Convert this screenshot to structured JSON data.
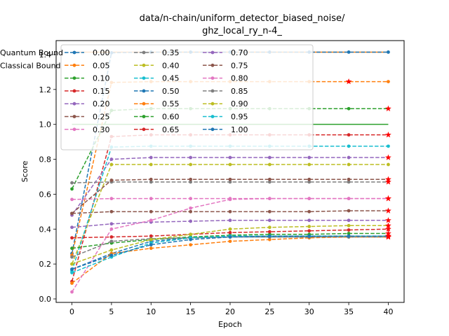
{
  "chart_data": {
    "type": "line",
    "title_line1": "data/n-chain/uniform_detector_biased_noise/",
    "title_line2": "ghz_local_ry_n-4_",
    "xlabel": "Epoch",
    "ylabel": "Score",
    "xlim": [
      -2,
      42
    ],
    "ylim": [
      -0.02,
      1.48
    ],
    "xticks": [
      0,
      5,
      10,
      15,
      20,
      25,
      30,
      35,
      40
    ],
    "yticks": [
      0.0,
      0.2,
      0.4,
      0.6,
      0.8,
      1.0,
      1.2,
      1.4
    ],
    "epochs": [
      0,
      5,
      10,
      15,
      20,
      25,
      30,
      35,
      40
    ],
    "quantum_bound": 1.414,
    "classical_bound": 1.0,
    "legend_placement": "upper-left",
    "series": [
      {
        "name": "0.00",
        "color": "#1f77b4",
        "values": [
          0.26,
          1.41,
          1.414,
          1.414,
          1.414,
          1.414,
          1.414,
          1.414,
          1.414
        ],
        "star": [
          false,
          false,
          false,
          false,
          false,
          false,
          false,
          false,
          false
        ]
      },
      {
        "name": "0.05",
        "color": "#ff7f0e",
        "values": [
          0.25,
          1.24,
          1.245,
          1.245,
          1.245,
          1.245,
          1.245,
          1.245,
          1.245
        ],
        "star": [
          false,
          false,
          false,
          false,
          false,
          false,
          false,
          true,
          false
        ]
      },
      {
        "name": "0.10",
        "color": "#2ca02c",
        "values": [
          0.63,
          1.08,
          1.09,
          1.09,
          1.09,
          1.09,
          1.09,
          1.09,
          1.09
        ],
        "star": [
          false,
          false,
          false,
          false,
          false,
          false,
          false,
          false,
          true
        ]
      },
      {
        "name": "0.15",
        "color": "#d62728",
        "values": [
          0.1,
          0.93,
          0.94,
          0.94,
          0.94,
          0.94,
          0.94,
          0.94,
          0.94
        ],
        "star": [
          false,
          false,
          false,
          false,
          false,
          false,
          false,
          false,
          true
        ]
      },
      {
        "name": "0.20",
        "color": "#9467bd",
        "values": [
          0.48,
          0.8,
          0.81,
          0.81,
          0.81,
          0.81,
          0.81,
          0.81,
          0.81
        ],
        "star": [
          false,
          false,
          false,
          false,
          false,
          false,
          false,
          false,
          true
        ]
      },
      {
        "name": "0.25",
        "color": "#8c564b",
        "values": [
          0.49,
          0.5,
          0.5,
          0.5,
          0.5,
          0.5,
          0.5,
          0.505,
          0.505
        ],
        "star": [
          false,
          false,
          false,
          false,
          false,
          false,
          false,
          false,
          true
        ]
      },
      {
        "name": "0.30",
        "color": "#e377c2",
        "values": [
          0.57,
          0.575,
          0.575,
          0.575,
          0.575,
          0.575,
          0.575,
          0.575,
          0.575
        ],
        "star": [
          false,
          false,
          false,
          false,
          false,
          false,
          false,
          false,
          true
        ]
      },
      {
        "name": "0.35",
        "color": "#7f7f7f",
        "values": [
          0.665,
          0.67,
          0.67,
          0.67,
          0.67,
          0.67,
          0.67,
          0.67,
          0.67
        ],
        "star": [
          false,
          false,
          false,
          false,
          false,
          false,
          false,
          false,
          true
        ]
      },
      {
        "name": "0.40",
        "color": "#bcbd22",
        "values": [
          0.2,
          0.77,
          0.77,
          0.77,
          0.77,
          0.77,
          0.77,
          0.77,
          0.77
        ],
        "star": [
          false,
          false,
          false,
          false,
          false,
          false,
          false,
          false,
          false
        ]
      },
      {
        "name": "0.45",
        "color": "#17becf",
        "values": [
          0.16,
          0.87,
          0.875,
          0.875,
          0.875,
          0.875,
          0.875,
          0.875,
          0.875
        ],
        "star": [
          false,
          false,
          false,
          false,
          false,
          false,
          false,
          false,
          false
        ]
      },
      {
        "name": "0.50",
        "color": "#1f77b4",
        "values": [
          0.17,
          0.26,
          0.33,
          0.35,
          0.355,
          0.355,
          0.355,
          0.355,
          0.355
        ],
        "star": [
          false,
          false,
          false,
          false,
          false,
          false,
          false,
          false,
          true
        ]
      },
      {
        "name": "0.55",
        "color": "#ff7f0e",
        "values": [
          0.09,
          0.26,
          0.29,
          0.31,
          0.33,
          0.34,
          0.35,
          0.355,
          0.355
        ],
        "star": [
          false,
          false,
          false,
          false,
          false,
          false,
          false,
          false,
          true
        ]
      },
      {
        "name": "0.60",
        "color": "#2ca02c",
        "values": [
          0.29,
          0.32,
          0.34,
          0.355,
          0.365,
          0.37,
          0.37,
          0.375,
          0.375
        ],
        "star": [
          false,
          false,
          false,
          false,
          false,
          false,
          false,
          false,
          true
        ]
      },
      {
        "name": "0.65",
        "color": "#d62728",
        "values": [
          0.35,
          0.355,
          0.36,
          0.37,
          0.38,
          0.385,
          0.39,
          0.395,
          0.4
        ],
        "star": [
          false,
          false,
          false,
          false,
          false,
          false,
          false,
          false,
          true
        ]
      },
      {
        "name": "0.70",
        "color": "#9467bd",
        "values": [
          0.41,
          0.43,
          0.44,
          0.445,
          0.45,
          0.45,
          0.45,
          0.45,
          0.45
        ],
        "star": [
          false,
          false,
          false,
          false,
          false,
          false,
          false,
          false,
          true
        ]
      },
      {
        "name": "0.75",
        "color": "#8c564b",
        "values": [
          0.49,
          0.68,
          0.685,
          0.685,
          0.685,
          0.685,
          0.685,
          0.685,
          0.685
        ],
        "star": [
          false,
          false,
          false,
          false,
          false,
          false,
          false,
          false,
          true
        ]
      },
      {
        "name": "0.80",
        "color": "#e377c2",
        "values": [
          0.04,
          0.4,
          0.45,
          0.52,
          0.57,
          0.575,
          0.575,
          0.575,
          0.575
        ],
        "star": [
          false,
          false,
          false,
          false,
          false,
          false,
          false,
          false,
          true
        ]
      },
      {
        "name": "0.85",
        "color": "#7f7f7f",
        "values": [
          0.24,
          0.33,
          0.345,
          0.35,
          0.355,
          0.355,
          0.355,
          0.355,
          0.355
        ],
        "star": [
          false,
          false,
          false,
          false,
          false,
          false,
          false,
          false,
          true
        ]
      },
      {
        "name": "0.90",
        "color": "#bcbd22",
        "values": [
          0.2,
          0.28,
          0.34,
          0.37,
          0.4,
          0.41,
          0.415,
          0.42,
          0.42
        ],
        "star": [
          false,
          false,
          false,
          false,
          false,
          false,
          false,
          false,
          true
        ]
      },
      {
        "name": "0.95",
        "color": "#17becf",
        "values": [
          0.15,
          0.24,
          0.32,
          0.35,
          0.36,
          0.36,
          0.36,
          0.36,
          0.36
        ],
        "star": [
          false,
          false,
          false,
          false,
          false,
          false,
          false,
          false,
          true
        ]
      },
      {
        "name": "1.00",
        "color": "#1f77b4",
        "values": [
          0.17,
          0.25,
          0.31,
          0.34,
          0.355,
          0.36,
          0.36,
          0.36,
          0.36
        ],
        "star": [
          false,
          false,
          false,
          false,
          false,
          false,
          false,
          false,
          true
        ]
      }
    ],
    "bound_series": [
      {
        "name": "Quantum Bound",
        "color": "#ff7f0e"
      },
      {
        "name": "Classical Bound",
        "color": "#2ca02c"
      }
    ]
  }
}
